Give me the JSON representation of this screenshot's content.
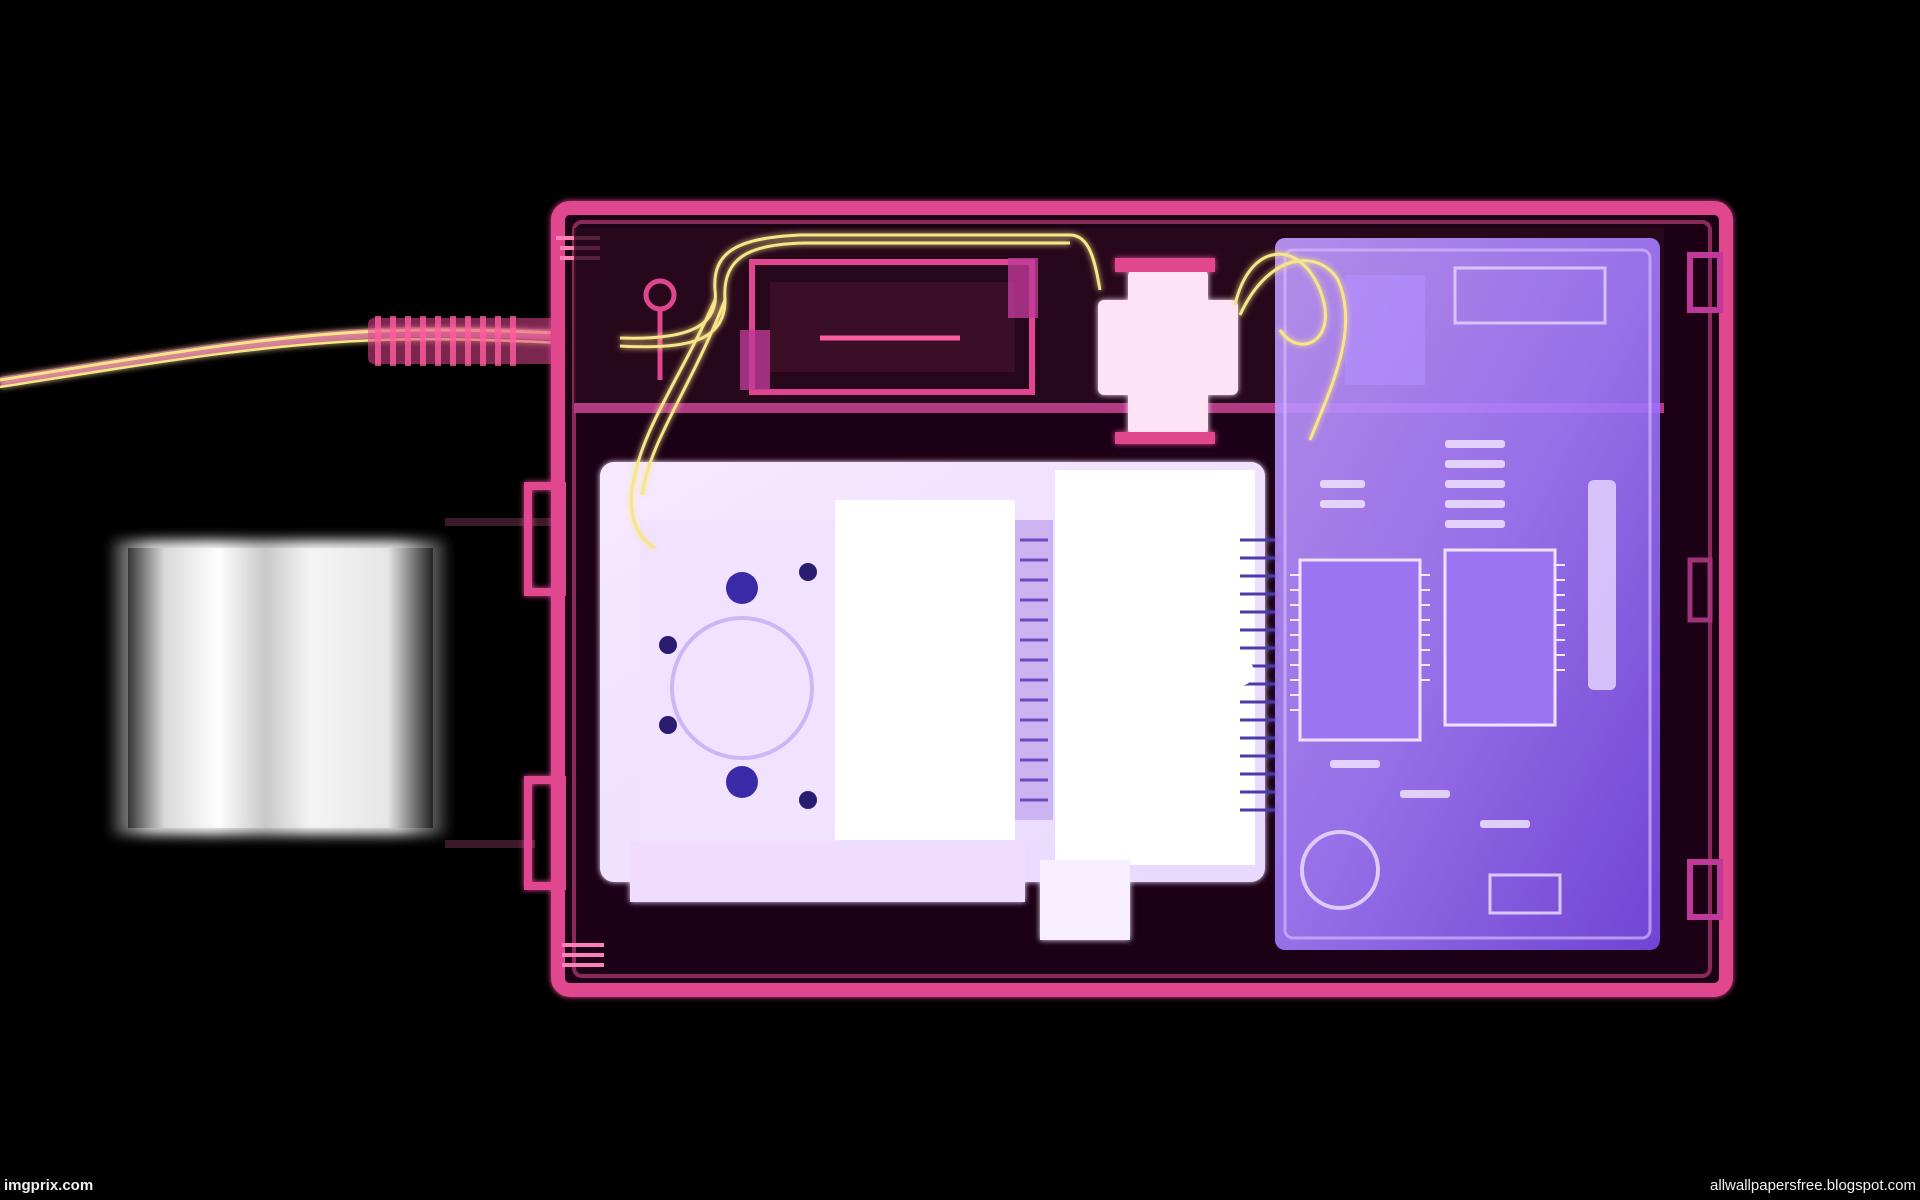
{
  "image": {
    "subject": "x-ray photograph of a handheld cassette recorder",
    "background_color": "#000000",
    "colors": {
      "casing": "#e0468f",
      "casing_glow": "#ff6fb0",
      "cable": "#f5e27a",
      "mechanism": "#f4ecff",
      "circuit_board": "#8b5cf6",
      "cassette_block": "#ffffff"
    }
  },
  "watermarks": {
    "left": "imgprix.com",
    "right": "allwallpapersfree.blogspot.com"
  }
}
